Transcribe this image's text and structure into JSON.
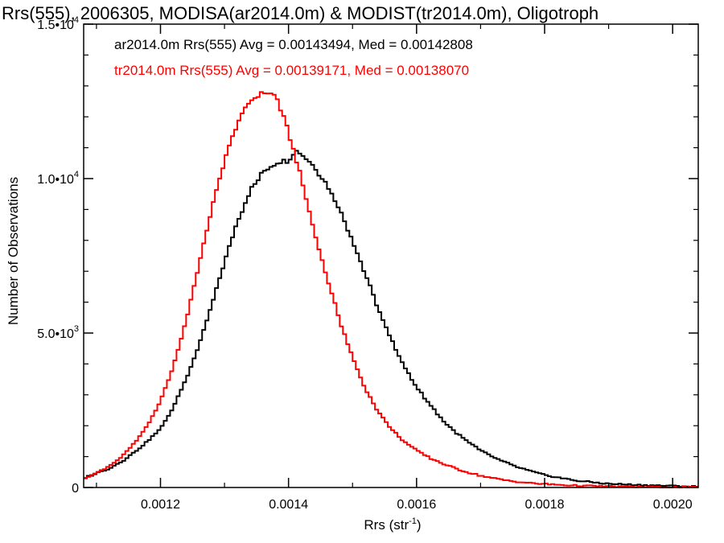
{
  "chart_data": {
    "type": "line",
    "title": "Rrs(555), 2006305, MODISA(ar2014.0m) & MODIST(tr2014.0m), Oligotroph",
    "xlabel_main": "Rrs (str",
    "xlabel_sup": "-1",
    "xlabel_close": ")",
    "ylabel": "Number of Observations",
    "xlim": [
      0.00108,
      0.00204
    ],
    "ylim": [
      0,
      15000
    ],
    "x_ticks": [
      {
        "value": 0.0012,
        "label": "0.0012"
      },
      {
        "value": 0.0014,
        "label": "0.0014"
      },
      {
        "value": 0.0016,
        "label": "0.0016"
      },
      {
        "value": 0.0018,
        "label": "0.0018"
      },
      {
        "value": 0.002,
        "label": "0.0020"
      }
    ],
    "y_ticks": [
      {
        "value": 0,
        "base": "0",
        "exp": ""
      },
      {
        "value": 5000,
        "base": "5.0•10",
        "exp": "3"
      },
      {
        "value": 10000,
        "base": "1.0•10",
        "exp": "4"
      },
      {
        "value": 15000,
        "base": "1.5•10",
        "exp": "4"
      }
    ],
    "series": [
      {
        "name": "ar2014.0m",
        "legend": "ar2014.0m Rrs(555) Avg = 0.00143494, Med = 0.00142808",
        "color": "#000000",
        "bin_width": 5e-06,
        "x": [
          0.00108,
          0.0011,
          0.00112,
          0.00114,
          0.00116,
          0.00118,
          0.0012,
          0.00122,
          0.00124,
          0.00126,
          0.00128,
          0.0013,
          0.00132,
          0.00134,
          0.00136,
          0.00138,
          0.0014,
          0.00141,
          0.00142,
          0.00144,
          0.00146,
          0.00148,
          0.0015,
          0.00152,
          0.00154,
          0.00156,
          0.00158,
          0.0016,
          0.00162,
          0.00164,
          0.00166,
          0.00168,
          0.0017,
          0.00172,
          0.00174,
          0.00176,
          0.00178,
          0.0018,
          0.00185,
          0.0019,
          0.00195,
          0.002,
          0.00204
        ],
        "y": [
          300,
          460,
          620,
          850,
          1150,
          1500,
          1900,
          2600,
          3500,
          4600,
          5900,
          7300,
          8600,
          9600,
          10200,
          10500,
          10600,
          10900,
          10800,
          10400,
          9800,
          9000,
          8000,
          6900,
          5800,
          4800,
          3950,
          3250,
          2700,
          2200,
          1800,
          1480,
          1200,
          980,
          800,
          640,
          520,
          400,
          220,
          120,
          80,
          50,
          30
        ]
      },
      {
        "name": "tr2014.0m",
        "legend": "tr2014.0m Rrs(555) Avg = 0.00139171, Med = 0.00138070",
        "color": "#ff0000",
        "bin_width": 5e-06,
        "x": [
          0.00108,
          0.0011,
          0.00112,
          0.00114,
          0.00116,
          0.00118,
          0.0012,
          0.00122,
          0.00124,
          0.00126,
          0.00128,
          0.0013,
          0.00132,
          0.00134,
          0.00136,
          0.00138,
          0.0014,
          0.00142,
          0.00144,
          0.00146,
          0.00148,
          0.0015,
          0.00152,
          0.00154,
          0.00156,
          0.00158,
          0.0016,
          0.00162,
          0.00164,
          0.00166,
          0.00168,
          0.0017,
          0.00172,
          0.00174,
          0.00176,
          0.00178,
          0.0018,
          0.00185,
          0.0019,
          0.00195,
          0.002,
          0.00204
        ],
        "y": [
          300,
          470,
          700,
          1000,
          1450,
          2000,
          2800,
          3900,
          5400,
          7200,
          9000,
          10600,
          11800,
          12500,
          12800,
          12700,
          11500,
          10000,
          8300,
          6800,
          5400,
          4200,
          3200,
          2450,
          1900,
          1500,
          1200,
          960,
          780,
          620,
          490,
          380,
          300,
          230,
          180,
          140,
          110,
          60,
          35,
          20,
          10,
          5
        ]
      }
    ]
  }
}
